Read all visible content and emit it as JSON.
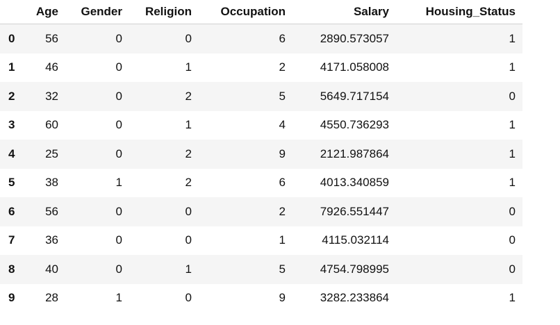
{
  "table": {
    "columns": [
      "Age",
      "Gender",
      "Religion",
      "Occupation",
      "Salary",
      "Housing_Status"
    ],
    "rows": [
      {
        "index": "0",
        "cells": [
          "56",
          "0",
          "0",
          "6",
          "2890.573057",
          "1"
        ]
      },
      {
        "index": "1",
        "cells": [
          "46",
          "0",
          "1",
          "2",
          "4171.058008",
          "1"
        ]
      },
      {
        "index": "2",
        "cells": [
          "32",
          "0",
          "2",
          "5",
          "5649.717154",
          "0"
        ]
      },
      {
        "index": "3",
        "cells": [
          "60",
          "0",
          "1",
          "4",
          "4550.736293",
          "1"
        ]
      },
      {
        "index": "4",
        "cells": [
          "25",
          "0",
          "2",
          "9",
          "2121.987864",
          "1"
        ]
      },
      {
        "index": "5",
        "cells": [
          "38",
          "1",
          "2",
          "6",
          "4013.340859",
          "1"
        ]
      },
      {
        "index": "6",
        "cells": [
          "56",
          "0",
          "0",
          "2",
          "7926.551447",
          "0"
        ]
      },
      {
        "index": "7",
        "cells": [
          "36",
          "0",
          "0",
          "1",
          "4115.032114",
          "0"
        ]
      },
      {
        "index": "8",
        "cells": [
          "40",
          "0",
          "1",
          "5",
          "4754.798995",
          "0"
        ]
      },
      {
        "index": "9",
        "cells": [
          "28",
          "1",
          "0",
          "9",
          "3282.233864",
          "1"
        ]
      }
    ]
  }
}
